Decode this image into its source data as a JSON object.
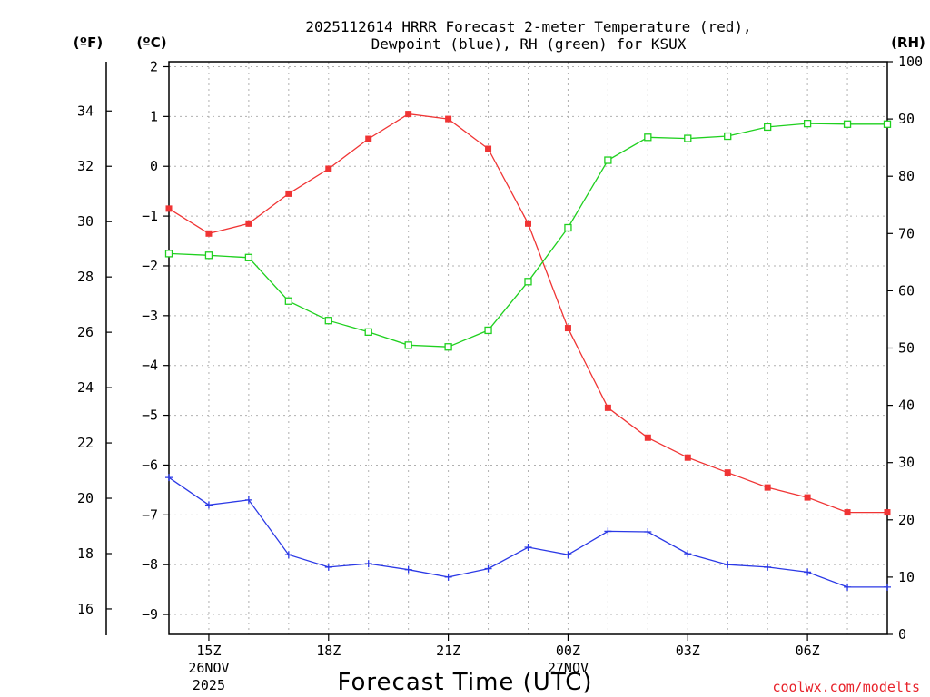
{
  "chart_data": {
    "type": "line",
    "title_line1": "2025112614 HRRR Forecast 2-meter Temperature (red),",
    "title_line2": "Dewpoint (blue), RH (green) for KSUX",
    "xlabel": "Forecast Time (UTC)",
    "credit": "coolwx.com/modelts",
    "unit_f": "(ºF)",
    "unit_c": "(ºC)",
    "unit_rh": "(RH)",
    "x": [
      14,
      15,
      16,
      17,
      18,
      19,
      20,
      21,
      22,
      23,
      24,
      25,
      26,
      27,
      28,
      29,
      30,
      31,
      32
    ],
    "xlim": [
      14,
      32
    ],
    "x_ticks": [
      {
        "hour": 15,
        "label": "15Z",
        "sub": "26NOV",
        "sub2": "2025"
      },
      {
        "hour": 18,
        "label": "18Z"
      },
      {
        "hour": 21,
        "label": "21Z"
      },
      {
        "hour": 24,
        "label": "00Z",
        "sub": "27NOV"
      },
      {
        "hour": 27,
        "label": "03Z"
      },
      {
        "hour": 30,
        "label": "06Z"
      }
    ],
    "celsius_axis": {
      "range": [
        -9.4,
        2.1
      ],
      "ticks": [
        "2",
        "1",
        "0",
        "−1",
        "−2",
        "−3",
        "−4",
        "−5",
        "−6",
        "−7",
        "−8",
        "−9"
      ]
    },
    "fahrenheit_axis": {
      "ticks": [
        "34",
        "32",
        "30",
        "28",
        "26",
        "24",
        "22",
        "20",
        "18",
        "16"
      ]
    },
    "rh_axis": {
      "range": [
        0,
        100
      ],
      "ticks": [
        "100",
        "90",
        "80",
        "70",
        "60",
        "50",
        "40",
        "30",
        "20",
        "10",
        "0"
      ]
    },
    "series": [
      {
        "name": "Temperature",
        "axis": "C",
        "color": "#f03434",
        "marker": "filled-square",
        "values": [
          -0.85,
          -1.35,
          -1.15,
          -0.55,
          -0.05,
          0.55,
          1.05,
          0.95,
          0.35,
          -1.15,
          -3.25,
          -4.85,
          -5.45,
          -5.85,
          -6.15,
          -6.45,
          -6.65,
          -6.95,
          -6.95
        ]
      },
      {
        "name": "Dewpoint",
        "axis": "C",
        "color": "#2b39e6",
        "marker": "plus",
        "values": [
          -6.25,
          -6.8,
          -6.7,
          -7.8,
          -8.05,
          -7.98,
          -8.1,
          -8.25,
          -8.08,
          -7.65,
          -7.8,
          -7.33,
          -7.34,
          -7.78,
          -8.0,
          -8.05,
          -8.15,
          -8.45,
          -8.45
        ]
      },
      {
        "name": "RH",
        "axis": "RH",
        "color": "#1fd01f",
        "marker": "open-square",
        "values": [
          66.5,
          66.2,
          65.8,
          58.2,
          54.8,
          52.8,
          50.5,
          50.2,
          53.1,
          61.6,
          71.0,
          82.8,
          86.8,
          86.6,
          87.0,
          88.6,
          89.2,
          89.1,
          89.1
        ]
      }
    ]
  }
}
